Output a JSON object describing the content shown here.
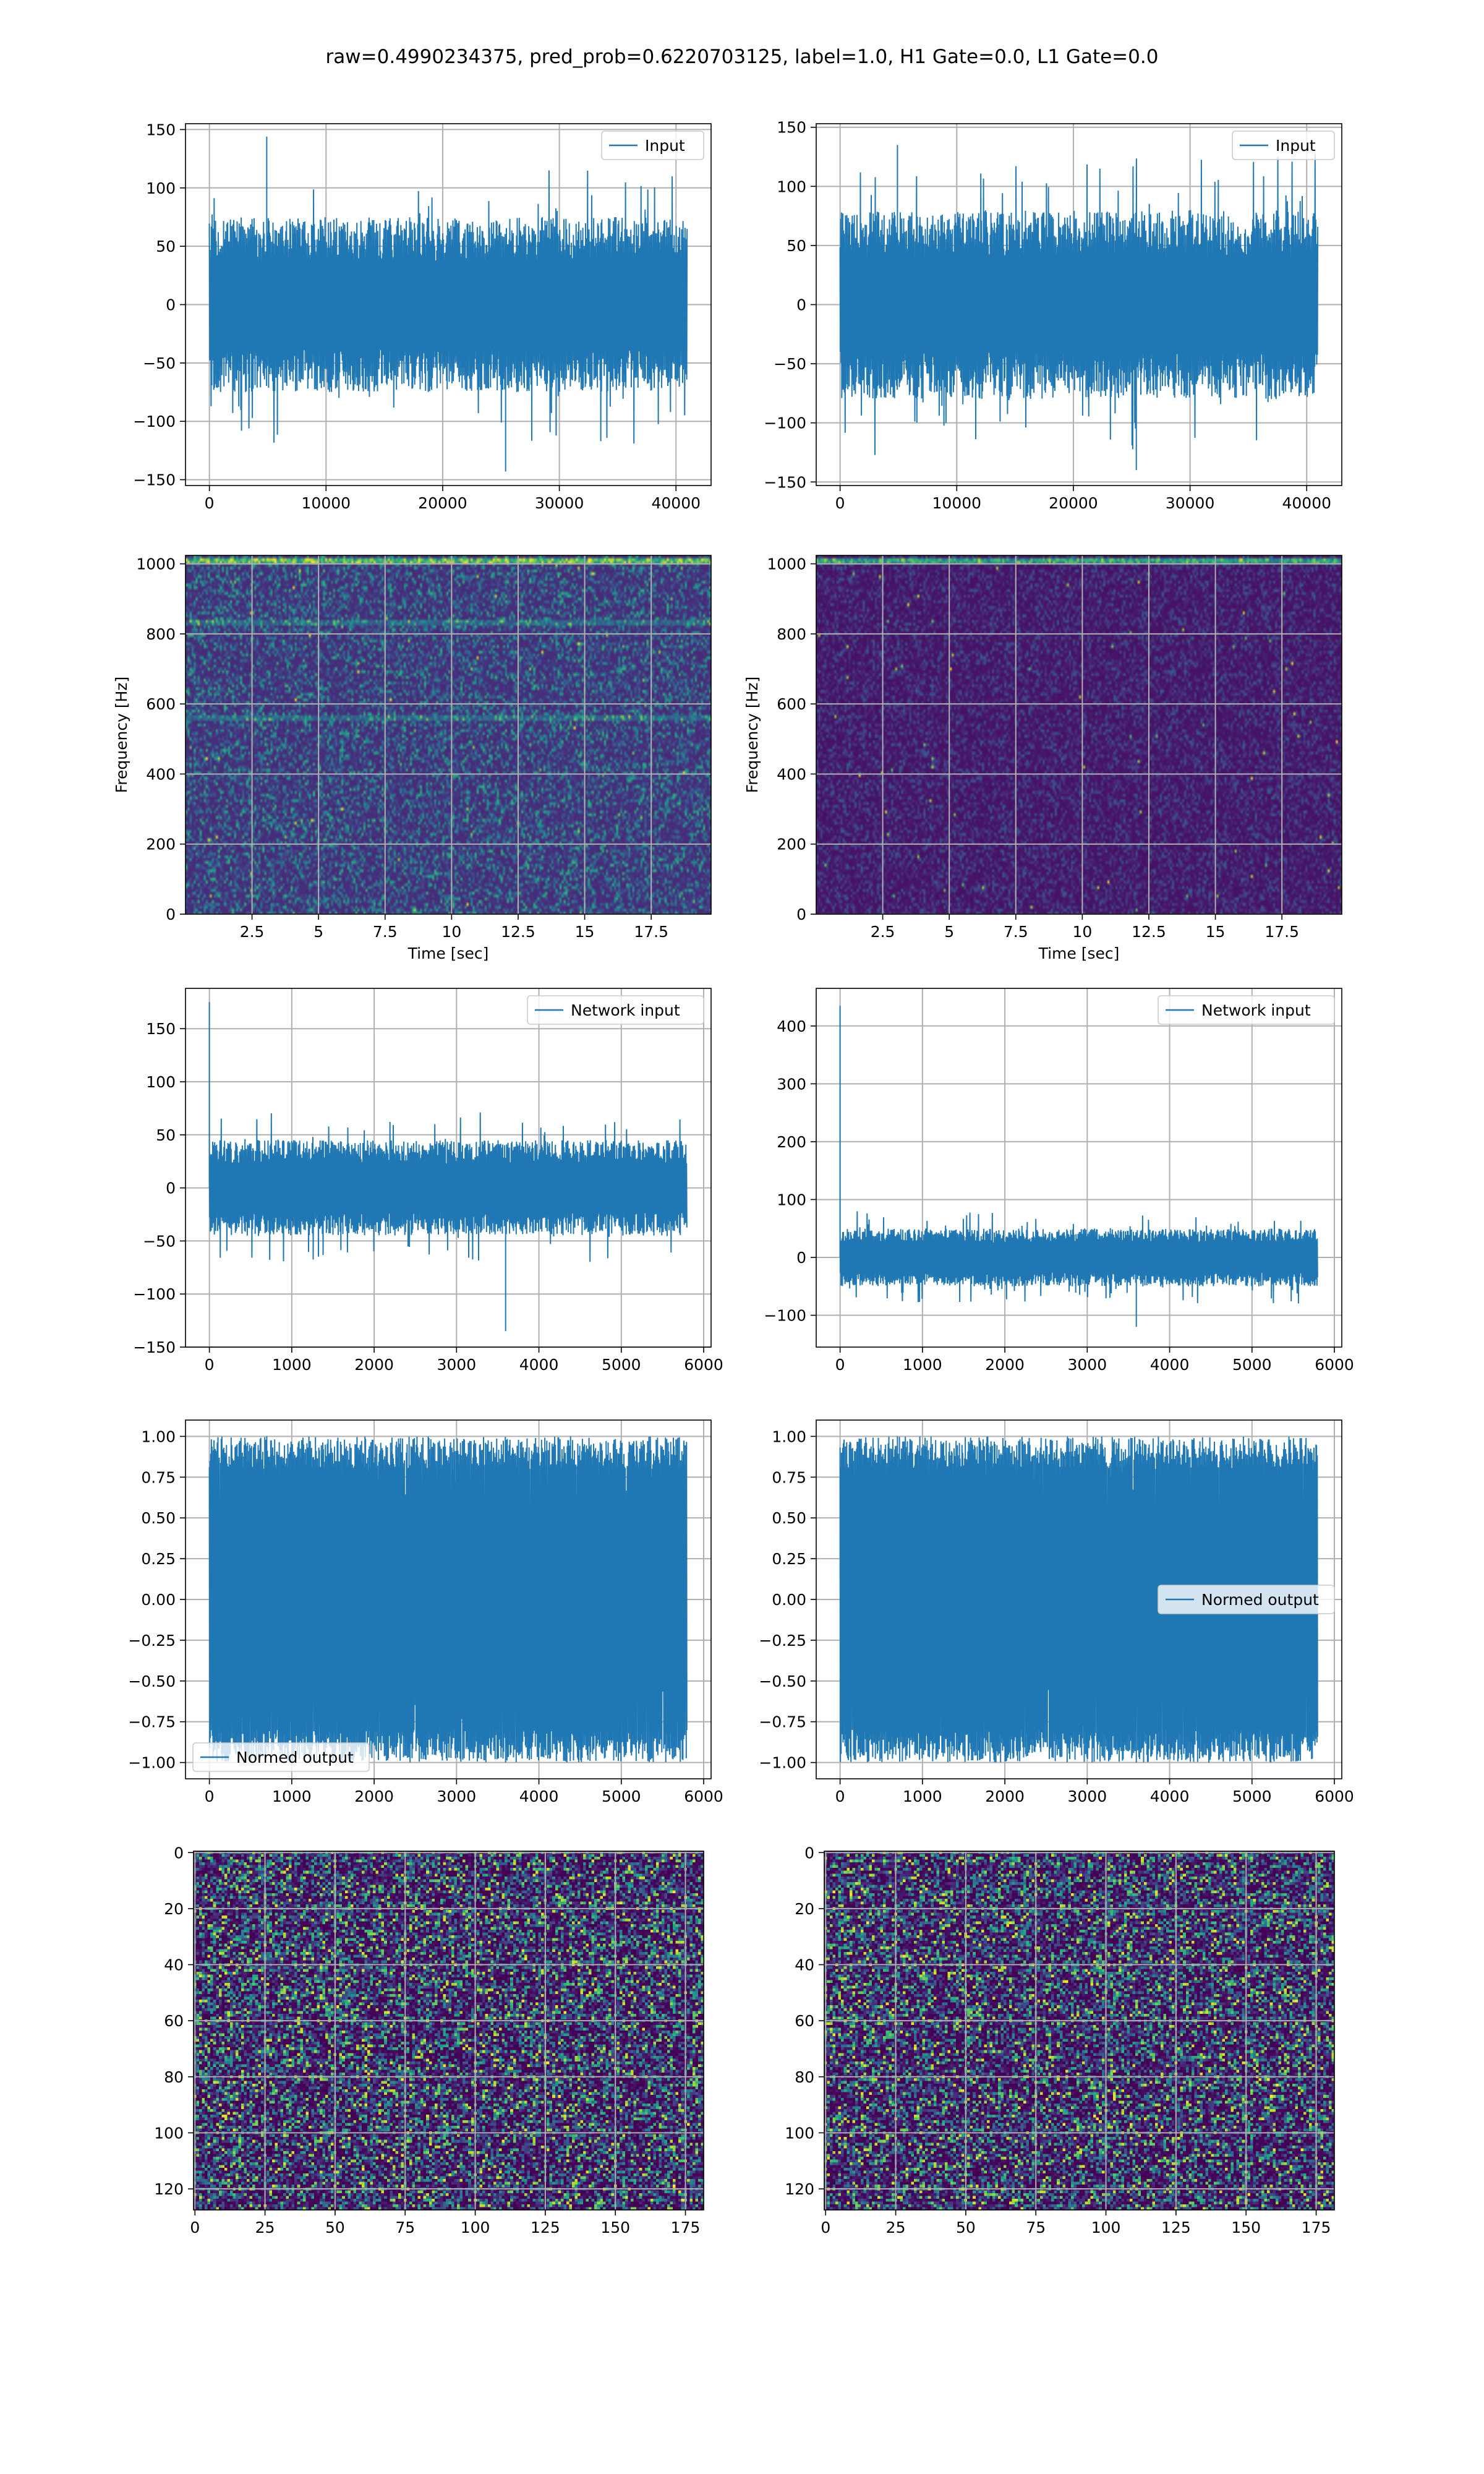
{
  "figure": {
    "suptitle": "raw=0.4990234375, pred_prob=0.6220703125, label=1.0, H1 Gate=0.0, L1 Gate=0.0",
    "line_color": "#1f77b4",
    "grid_color": "#b0b0b0",
    "colormap": "viridis"
  },
  "chart_data": [
    {
      "id": "h1-input",
      "type": "line",
      "title": "",
      "legend": "Input",
      "legend_loc": "upper right",
      "xlabel": "",
      "ylabel": "",
      "xlim": [
        -2048,
        43008
      ],
      "ylim": [
        -155,
        155
      ],
      "xticks": [
        0,
        10000,
        20000,
        30000,
        40000
      ],
      "yticks": [
        -150,
        -100,
        -50,
        0,
        50,
        100,
        150
      ],
      "x_range": [
        0,
        40960
      ],
      "n_samples": 40960,
      "envelope": {
        "typical_abs": 75,
        "peak_max": 144,
        "peak_min": -143
      }
    },
    {
      "id": "l1-input",
      "type": "line",
      "title": "",
      "legend": "Input",
      "legend_loc": "upper right",
      "xlabel": "",
      "ylabel": "",
      "xlim": [
        -2048,
        43008
      ],
      "ylim": [
        -153,
        153
      ],
      "xticks": [
        0,
        10000,
        20000,
        30000,
        40000
      ],
      "yticks": [
        -150,
        -100,
        -50,
        0,
        50,
        100,
        150
      ],
      "x_range": [
        0,
        40960
      ],
      "n_samples": 40960,
      "envelope": {
        "typical_abs": 80,
        "peak_max": 135,
        "peak_min": -140
      }
    },
    {
      "id": "h1-spectrogram",
      "type": "heatmap",
      "title": "",
      "xlabel": "Time [sec]",
      "ylabel": "Frequency [Hz]",
      "xlim": [
        0,
        19.75
      ],
      "ylim": [
        0,
        1024
      ],
      "xticks": [
        2.5,
        5.0,
        7.5,
        10.0,
        12.5,
        15.0,
        17.5
      ],
      "yticks": [
        0,
        200,
        400,
        600,
        800,
        1000
      ],
      "colormap": "viridis",
      "bright_bands_hz": [
        560,
        830,
        1010
      ]
    },
    {
      "id": "l1-spectrogram",
      "type": "heatmap",
      "title": "",
      "xlabel": "Time [sec]",
      "ylabel": "Frequency [Hz]",
      "xlim": [
        0,
        19.75
      ],
      "ylim": [
        0,
        1024
      ],
      "xticks": [
        2.5,
        5.0,
        7.5,
        10.0,
        12.5,
        15.0,
        17.5
      ],
      "yticks": [
        0,
        200,
        400,
        600,
        800,
        1000
      ],
      "colormap": "viridis",
      "bright_bands_hz": [
        1010
      ]
    },
    {
      "id": "h1-network-input",
      "type": "line",
      "title": "",
      "legend": "Network input",
      "legend_loc": "upper right",
      "xlabel": "",
      "ylabel": "",
      "xlim": [
        -290,
        6090
      ],
      "ylim": [
        -150,
        188
      ],
      "xticks": [
        0,
        1000,
        2000,
        3000,
        4000,
        5000,
        6000
      ],
      "yticks": [
        -150,
        -100,
        -50,
        0,
        50,
        100,
        150
      ],
      "x_range": [
        0,
        5800
      ],
      "n_samples": 5800,
      "envelope": {
        "typical_abs": 45,
        "peak_max": 175,
        "peak_min": -135
      }
    },
    {
      "id": "l1-network-input",
      "type": "line",
      "title": "",
      "legend": "Network input",
      "legend_loc": "upper right",
      "xlabel": "",
      "ylabel": "",
      "xlim": [
        -290,
        6090
      ],
      "ylim": [
        -155,
        465
      ],
      "xticks": [
        0,
        1000,
        2000,
        3000,
        4000,
        5000,
        6000
      ],
      "yticks": [
        -100,
        0,
        100,
        200,
        300,
        400
      ],
      "x_range": [
        0,
        5800
      ],
      "n_samples": 5800,
      "envelope": {
        "typical_abs": 50,
        "peak_max": 435,
        "peak_min": -120
      }
    },
    {
      "id": "h1-normed-output",
      "type": "line",
      "title": "",
      "legend": "Normed output",
      "legend_loc": "lower left",
      "xlabel": "",
      "ylabel": "",
      "xlim": [
        -290,
        6090
      ],
      "ylim": [
        -1.1,
        1.1
      ],
      "xticks": [
        0,
        1000,
        2000,
        3000,
        4000,
        5000,
        6000
      ],
      "yticks": [
        -1.0,
        -0.75,
        -0.5,
        -0.25,
        0.0,
        0.25,
        0.5,
        0.75,
        1.0
      ],
      "x_range": [
        0,
        5800
      ],
      "n_samples": 5800,
      "envelope": {
        "typical_abs": 0.95,
        "peak_max": 1.0,
        "peak_min": -1.0
      }
    },
    {
      "id": "l1-normed-output",
      "type": "line",
      "title": "",
      "legend": "Normed output",
      "legend_loc": "center right",
      "xlabel": "",
      "ylabel": "",
      "xlim": [
        -290,
        6090
      ],
      "ylim": [
        -1.1,
        1.1
      ],
      "xticks": [
        0,
        1000,
        2000,
        3000,
        4000,
        5000,
        6000
      ],
      "yticks": [
        -1.0,
        -0.75,
        -0.5,
        -0.25,
        0.0,
        0.25,
        0.5,
        0.75,
        1.0
      ],
      "x_range": [
        0,
        5800
      ],
      "n_samples": 5800,
      "envelope": {
        "typical_abs": 0.95,
        "peak_max": 1.0,
        "peak_min": -1.0
      }
    },
    {
      "id": "h1-matrix",
      "type": "heatmap",
      "title": "",
      "xlabel": "",
      "ylabel": "",
      "xlim": [
        -0.5,
        181.5
      ],
      "ylim": [
        127.5,
        -0.5
      ],
      "xticks": [
        0,
        25,
        50,
        75,
        100,
        125,
        150,
        175
      ],
      "yticks": [
        0,
        20,
        40,
        60,
        80,
        100,
        120
      ],
      "shape": [
        128,
        182
      ],
      "colormap": "viridis"
    },
    {
      "id": "l1-matrix",
      "type": "heatmap",
      "title": "",
      "xlabel": "",
      "ylabel": "",
      "xlim": [
        -0.5,
        181.5
      ],
      "ylim": [
        127.5,
        -0.5
      ],
      "xticks": [
        0,
        25,
        50,
        75,
        100,
        125,
        150,
        175
      ],
      "yticks": [
        0,
        20,
        40,
        60,
        80,
        100,
        120
      ],
      "shape": [
        128,
        182
      ],
      "colormap": "viridis"
    }
  ]
}
